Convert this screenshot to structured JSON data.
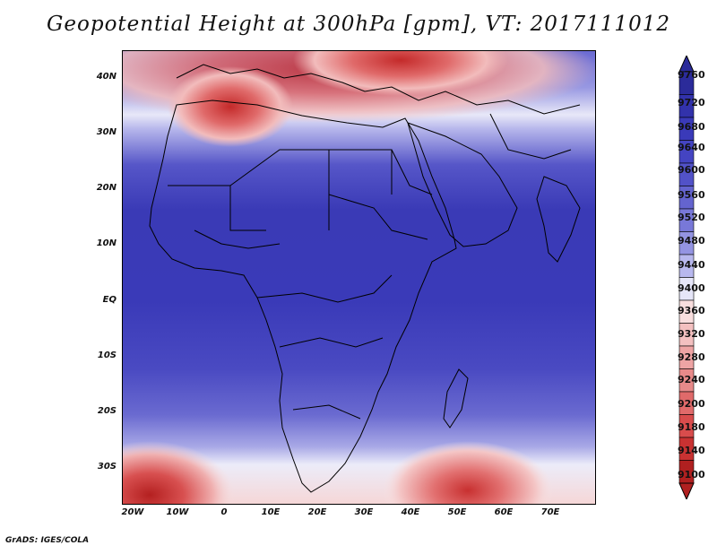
{
  "title": "Geopotential Height at 300hPa [gpm], VT: 2017111012",
  "credit": "GrADS: IGES/COLA",
  "map": {
    "lat_labels": [
      "40N",
      "30N",
      "20N",
      "10N",
      "EQ",
      "10S",
      "20S",
      "30S"
    ],
    "lon_labels": [
      "20W",
      "10W",
      "0",
      "10E",
      "20E",
      "30E",
      "40E",
      "50E",
      "60E",
      "70E"
    ],
    "lat_values": [
      40,
      30,
      20,
      10,
      0,
      -10,
      -20,
      -30
    ],
    "lon_values": [
      -20,
      -10,
      0,
      10,
      20,
      30,
      40,
      50,
      60,
      70
    ],
    "extent": {
      "lon_min": -22,
      "lon_max": 80,
      "lat_min": -37,
      "lat_max": 45
    }
  },
  "colorbar": {
    "levels": [
      "9760",
      "9720",
      "9680",
      "9640",
      "9600",
      "9560",
      "9520",
      "9480",
      "9440",
      "9400",
      "9360",
      "9320",
      "9280",
      "9240",
      "9200",
      "9180",
      "9140",
      "9100"
    ],
    "colors": [
      "#2b2b9a",
      "#3232ab",
      "#3a3ab9",
      "#4444c2",
      "#5252c8",
      "#6464cf",
      "#7878d8",
      "#9494e2",
      "#b8b8ee",
      "#e6e6f8",
      "#f8dede",
      "#f3c0c0",
      "#eea4a4",
      "#e88a8a",
      "#e06a6a",
      "#d84c4c",
      "#c83232",
      "#b02020"
    ]
  }
}
